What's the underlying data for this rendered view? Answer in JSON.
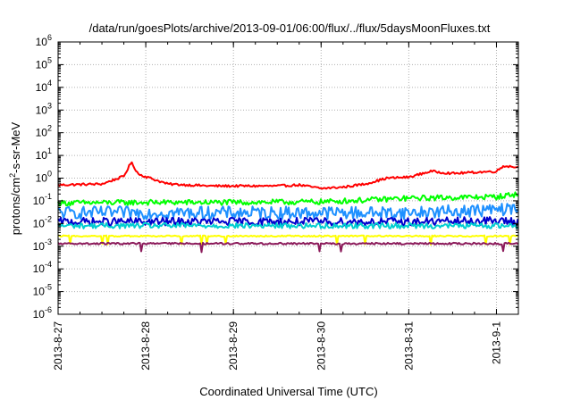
{
  "chart_data": {
    "type": "line",
    "title": "/data/run/goesPlots/archive/2013-09-01/06:00/flux/../flux/5daysMoonFluxes.txt",
    "xlabel": "Coordinated Universal Time (UTC)",
    "ylabel": "protons/cm²-s-sr-MeV",
    "y_scale": "log",
    "ylim_exponent": [
      -6,
      6
    ],
    "y_tick_labels": [
      "10-6",
      "10-5",
      "10-4",
      "10-3",
      "10-2",
      "10-1",
      "100",
      "101",
      "102",
      "103",
      "104",
      "105",
      "106"
    ],
    "y_tick_exponents": [
      "-6",
      "-5",
      "-4",
      "-3",
      "-2",
      "-1",
      "0",
      "1",
      "2",
      "3",
      "4",
      "5",
      "6"
    ],
    "x_range_days": [
      "2013-08-27",
      "2013-09-01 06:00"
    ],
    "x_tick_labels": [
      "2013-8-27",
      "2013-8-28",
      "2013-8-29",
      "2013-8-30",
      "2013-8-31",
      "2013-9-1"
    ],
    "grid": true,
    "legend": "none",
    "series": [
      {
        "color": "#ff0000",
        "points": [
          [
            "2013-08-27 00:00",
            0.5
          ],
          [
            "2013-08-27 12:00",
            0.55
          ],
          [
            "2013-08-27 18:00",
            1.2
          ],
          [
            "2013-08-27 20:00",
            5.0
          ],
          [
            "2013-08-27 22:00",
            1.5
          ],
          [
            "2013-08-28 06:00",
            0.55
          ],
          [
            "2013-08-28 18:00",
            0.45
          ],
          [
            "2013-08-29 12:00",
            0.45
          ],
          [
            "2013-08-29 18:00",
            0.5
          ],
          [
            "2013-08-30 00:00",
            0.35
          ],
          [
            "2013-08-30 06:00",
            0.4
          ],
          [
            "2013-08-30 12:00",
            0.55
          ],
          [
            "2013-08-30 18:00",
            1.0
          ],
          [
            "2013-08-31 00:00",
            1.1
          ],
          [
            "2013-08-31 06:00",
            2.0
          ],
          [
            "2013-08-31 12:00",
            1.6
          ],
          [
            "2013-08-31 18:00",
            1.8
          ],
          [
            "2013-09-01 00:00",
            2.0
          ],
          [
            "2013-09-01 02:00",
            3.5
          ],
          [
            "2013-09-01 06:00",
            3.0
          ]
        ]
      },
      {
        "color": "#00ff00",
        "points": [
          [
            "2013-08-27 00:00",
            0.08
          ],
          [
            "2013-08-28 00:00",
            0.085
          ],
          [
            "2013-08-29 00:00",
            0.085
          ],
          [
            "2013-08-30 00:00",
            0.09
          ],
          [
            "2013-08-31 00:00",
            0.13
          ],
          [
            "2013-09-01 00:00",
            0.15
          ],
          [
            "2013-09-01 06:00",
            0.2
          ]
        ]
      },
      {
        "color": "#1e90ff",
        "points": [
          [
            "2013-08-27 00:00",
            0.03
          ],
          [
            "2013-08-28 00:00",
            0.03
          ],
          [
            "2013-08-29 00:00",
            0.03
          ],
          [
            "2013-08-30 00:00",
            0.03
          ],
          [
            "2013-08-31 00:00",
            0.03
          ],
          [
            "2013-09-01 00:00",
            0.04
          ],
          [
            "2013-09-01 06:00",
            0.045
          ]
        ]
      },
      {
        "color": "#0000cd",
        "points": [
          [
            "2013-08-27 00:00",
            0.012
          ],
          [
            "2013-08-28 00:00",
            0.012
          ],
          [
            "2013-08-29 00:00",
            0.012
          ],
          [
            "2013-08-30 00:00",
            0.012
          ],
          [
            "2013-08-31 00:00",
            0.012
          ],
          [
            "2013-09-01 00:00",
            0.013
          ],
          [
            "2013-09-01 06:00",
            0.012
          ]
        ]
      },
      {
        "color": "#00ced1",
        "points": [
          [
            "2013-08-27 00:00",
            0.008
          ],
          [
            "2013-08-28 00:00",
            0.008
          ],
          [
            "2013-08-29 00:00",
            0.008
          ],
          [
            "2013-08-30 00:00",
            0.008
          ],
          [
            "2013-08-31 00:00",
            0.008
          ],
          [
            "2013-09-01 00:00",
            0.008
          ],
          [
            "2013-09-01 06:00",
            0.008
          ]
        ]
      },
      {
        "color": "#ffff00",
        "points": [
          [
            "2013-08-27 00:00",
            0.0028
          ],
          [
            "2013-08-28 00:00",
            0.0028
          ],
          [
            "2013-08-29 00:00",
            0.0028
          ],
          [
            "2013-08-30 00:00",
            0.0028
          ],
          [
            "2013-08-31 00:00",
            0.0028
          ],
          [
            "2013-09-01 00:00",
            0.0028
          ],
          [
            "2013-09-01 06:00",
            0.0028
          ]
        ]
      },
      {
        "color": "#8b1a5a",
        "points": [
          [
            "2013-08-27 00:00",
            0.0013
          ],
          [
            "2013-08-28 00:00",
            0.0013
          ],
          [
            "2013-08-29 00:00",
            0.0013
          ],
          [
            "2013-08-30 00:00",
            0.0013
          ],
          [
            "2013-08-31 00:00",
            0.0013
          ],
          [
            "2013-09-01 00:00",
            0.0013
          ],
          [
            "2013-09-01 06:00",
            0.0013
          ]
        ]
      }
    ]
  }
}
